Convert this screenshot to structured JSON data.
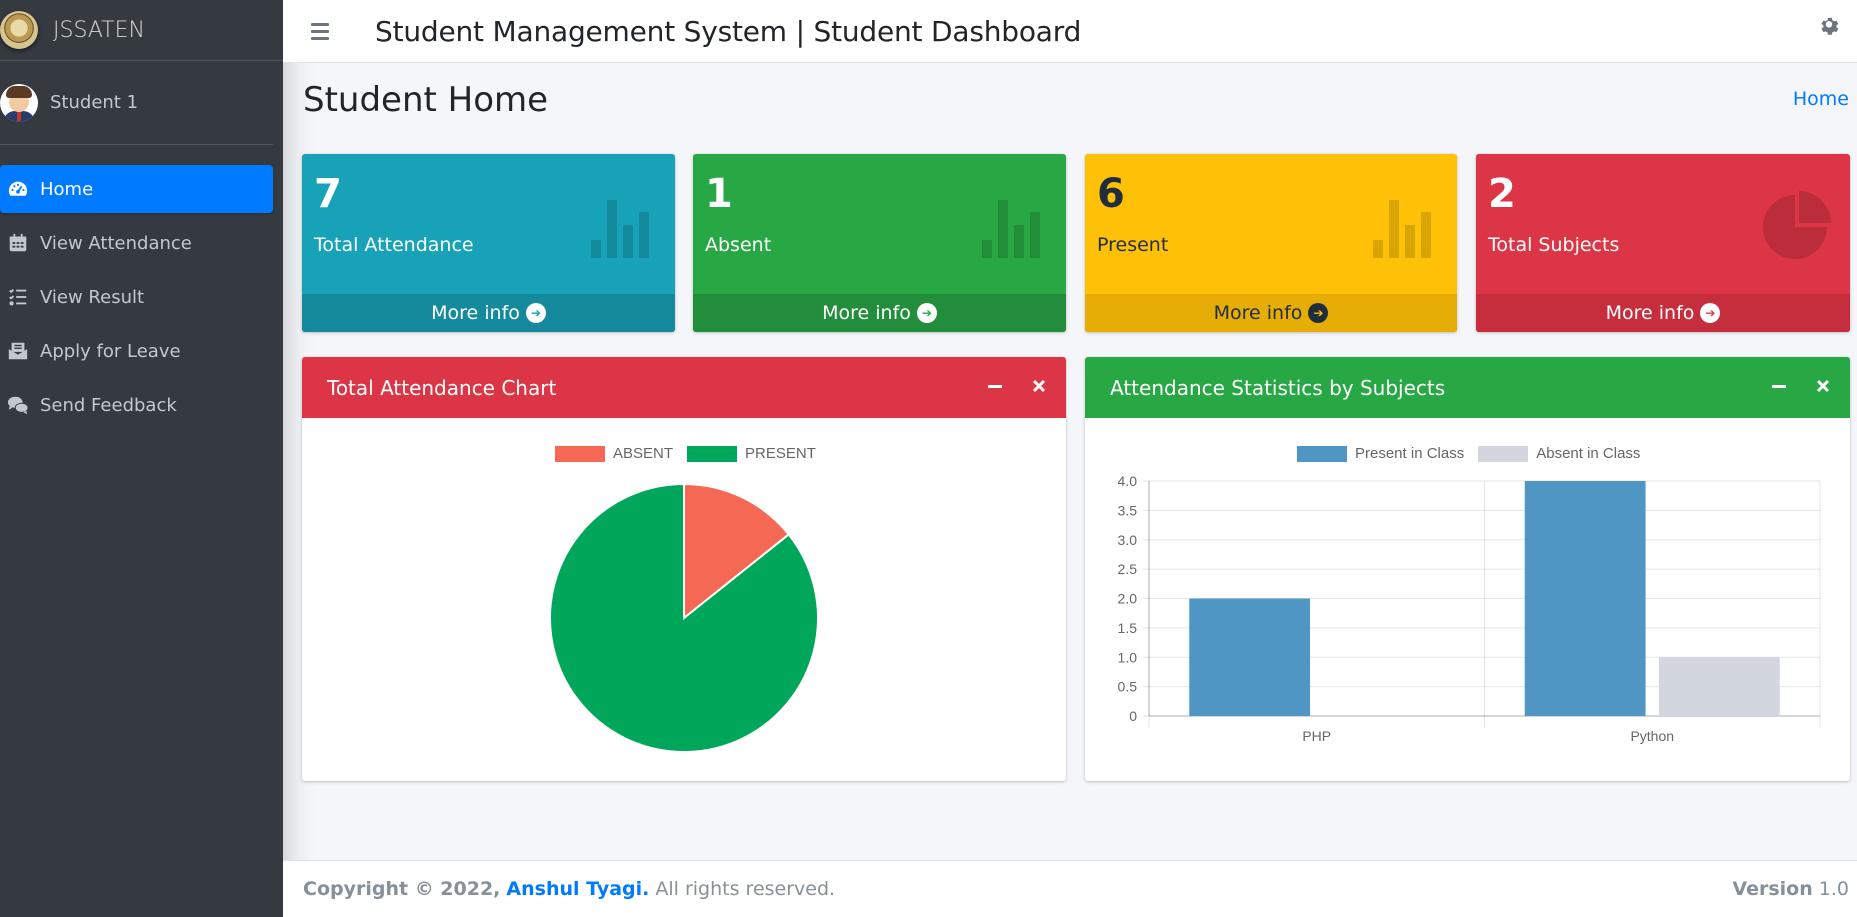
{
  "brand": {
    "name": "JSSATEN",
    "logo": "college-seal"
  },
  "user": {
    "name": "Student 1"
  },
  "sidebar": {
    "items": [
      {
        "label": "Home",
        "icon": "dashboard-gauge-icon",
        "active": true
      },
      {
        "label": "View Attendance",
        "icon": "calendar-icon",
        "active": false
      },
      {
        "label": "View Result",
        "icon": "list-check-icon",
        "active": false
      },
      {
        "label": "Apply for Leave",
        "icon": "envelope-open-icon",
        "active": false
      },
      {
        "label": "Send Feedback",
        "icon": "comments-icon",
        "active": false
      }
    ]
  },
  "header": {
    "title": "Student Management System | Student Dashboard"
  },
  "page": {
    "title": "Student Home",
    "breadcrumb": "Home"
  },
  "stats": [
    {
      "value": "7",
      "label": "Total Attendance",
      "link": "More info",
      "color": "#17a2b8",
      "icon": "bar-chart-icon"
    },
    {
      "value": "1",
      "label": "Absent",
      "link": "More info",
      "color": "#28a745",
      "icon": "bar-chart-icon"
    },
    {
      "value": "6",
      "label": "Present",
      "link": "More info",
      "color": "#ffc107",
      "icon": "bar-chart-icon"
    },
    {
      "value": "2",
      "label": "Total Subjects",
      "link": "More info",
      "color": "#dc3545",
      "icon": "pie-chart-icon"
    }
  ],
  "cards": {
    "attendance": {
      "title": "Total Attendance Chart"
    },
    "subjects": {
      "title": "Attendance Statistics by Subjects"
    }
  },
  "chart_data": [
    {
      "type": "pie",
      "labels": [
        "ABSENT",
        "PRESENT"
      ],
      "values": [
        1,
        6
      ],
      "colors": [
        "#f56954",
        "#00a65a"
      ],
      "legend": "top"
    },
    {
      "type": "bar",
      "categories": [
        "PHP",
        "Python"
      ],
      "series": [
        {
          "name": "Present in Class",
          "values": [
            2,
            4
          ],
          "color": "#4f96c4"
        },
        {
          "name": "Absent in Class",
          "values": [
            0,
            1
          ],
          "color": "#d2d6de"
        }
      ],
      "ylim": [
        0,
        4
      ],
      "yticks": [
        "0",
        "0.5",
        "1.0",
        "1.5",
        "2.0",
        "2.5",
        "3.0",
        "3.5",
        "4.0"
      ],
      "grid": true,
      "legend": "top"
    }
  ],
  "footer": {
    "copyright": "Copyright © 2022,",
    "author": "Anshul Tyagi.",
    "rights": "All rights reserved.",
    "version_label": "Version",
    "version": "1.0"
  },
  "colors": {
    "primary": "#007bff",
    "sidebar": "#343a40"
  }
}
